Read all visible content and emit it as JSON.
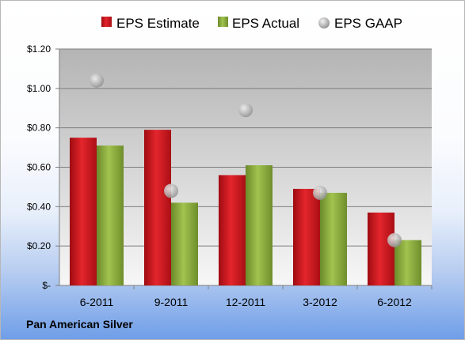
{
  "company_name": "Pan American Silver",
  "colors": {
    "estimate": "#d7161e",
    "actual": "#8fb33f",
    "gaap": "#b9b9b9"
  },
  "chart_data": {
    "type": "bar",
    "categories": [
      "6-2011",
      "9-2011",
      "12-2011",
      "3-2012",
      "6-2012"
    ],
    "series": [
      {
        "name": "EPS Estimate",
        "type": "bar",
        "values": [
          0.75,
          0.79,
          0.56,
          0.49,
          0.37
        ]
      },
      {
        "name": "EPS Actual",
        "type": "bar",
        "values": [
          0.71,
          0.42,
          0.61,
          0.47,
          0.23
        ]
      },
      {
        "name": "EPS GAAP",
        "type": "scatter",
        "values": [
          1.04,
          0.48,
          0.89,
          0.47,
          0.23
        ]
      }
    ],
    "ylim": [
      0,
      1.2
    ],
    "y_ticks": [
      {
        "value": 0,
        "label": "$-"
      },
      {
        "value": 0.2,
        "label": "$0.20"
      },
      {
        "value": 0.4,
        "label": "$0.40"
      },
      {
        "value": 0.6,
        "label": "$0.60"
      },
      {
        "value": 0.8,
        "label": "$0.80"
      },
      {
        "value": 1.0,
        "label": "$1.00"
      },
      {
        "value": 1.2,
        "label": "$1.20"
      }
    ],
    "grid": true,
    "legend_position": "top"
  }
}
